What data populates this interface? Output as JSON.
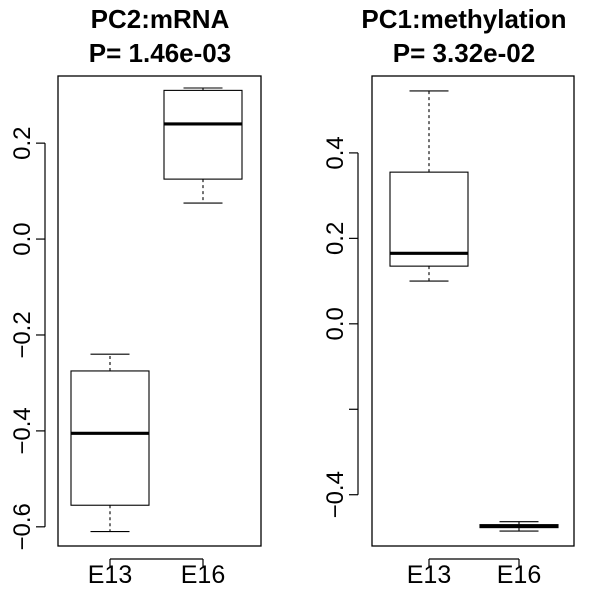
{
  "chart_data": [
    {
      "type": "box",
      "title": "PC2:mRNA",
      "subtitle": "P= 1.46e-03",
      "categories": [
        "E13",
        "E16"
      ],
      "ylim": [
        -0.64,
        0.34
      ],
      "yticks": [
        -0.6,
        -0.4,
        -0.2,
        0.0,
        0.2
      ],
      "ytick_labels": [
        "-0.6",
        "-0.4",
        "-0.2",
        "0.0",
        "0.2"
      ],
      "boxes": [
        {
          "category": "E13",
          "min": -0.61,
          "q1": -0.555,
          "median": -0.405,
          "q3": -0.275,
          "max": -0.24
        },
        {
          "category": "E16",
          "min": 0.075,
          "q1": 0.125,
          "median": 0.24,
          "q3": 0.31,
          "max": 0.315
        }
      ]
    },
    {
      "type": "box",
      "title": "PC1:methylation",
      "subtitle": "P= 3.32e-02",
      "categories": [
        "E13",
        "E16"
      ],
      "ylim": [
        -0.52,
        0.58
      ],
      "yticks": [
        -0.4,
        -0.2,
        0.0,
        0.2,
        0.4
      ],
      "ytick_labels": [
        "-0.4",
        "",
        "0.0",
        "0.2",
        "0.4"
      ],
      "boxes": [
        {
          "category": "E13",
          "min": 0.1,
          "q1": 0.135,
          "median": 0.165,
          "q3": 0.355,
          "max": 0.545
        },
        {
          "category": "E16",
          "min": -0.485,
          "q1": -0.477,
          "median": -0.474,
          "q3": -0.47,
          "max": -0.463
        }
      ]
    }
  ]
}
